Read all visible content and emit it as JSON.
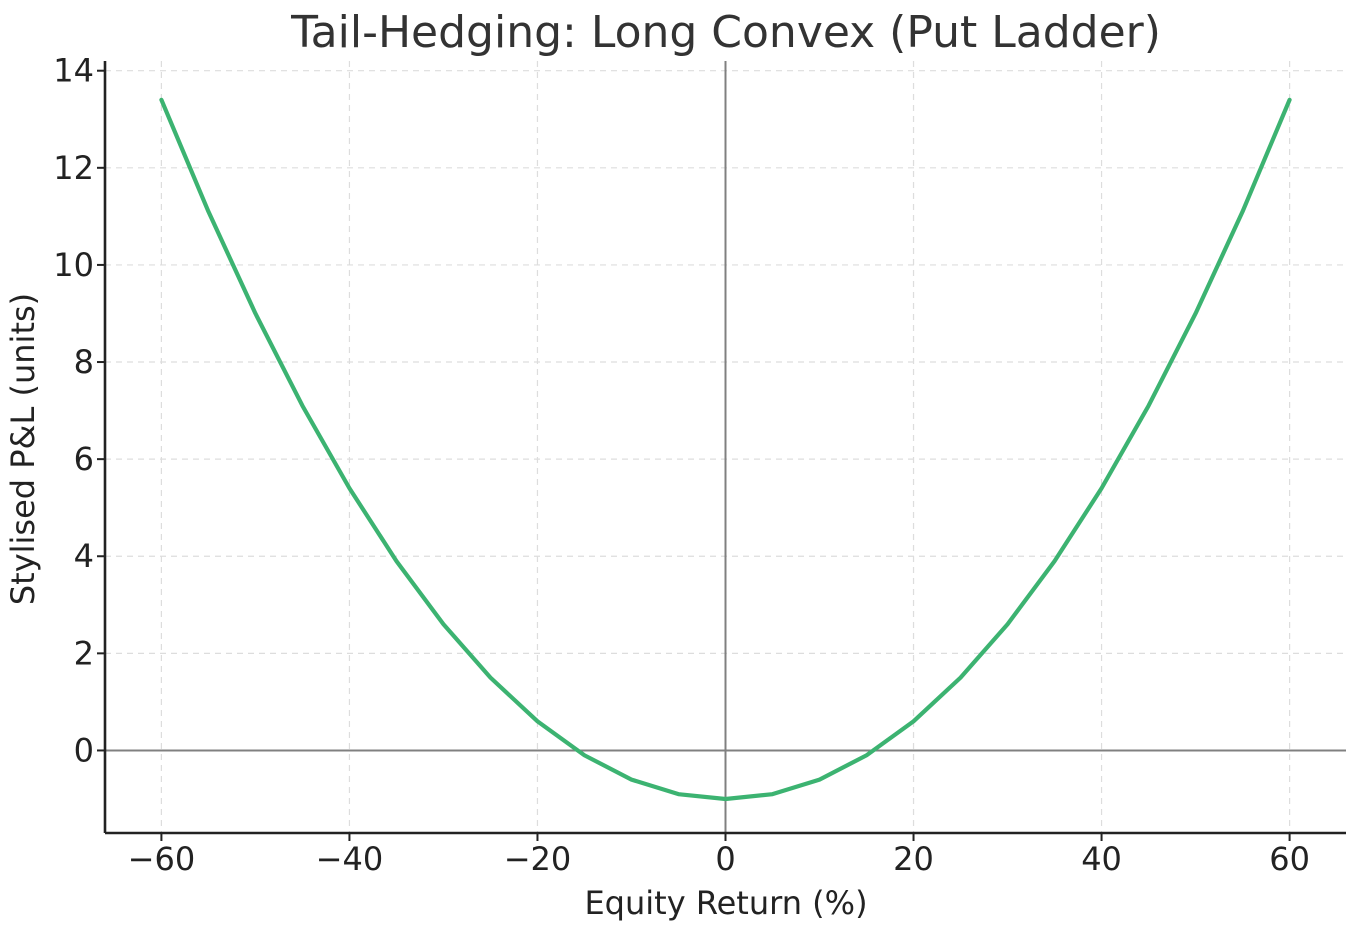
{
  "chart_data": {
    "type": "line",
    "title": "Tail-Hedging: Long Convex (Put Ladder)",
    "xlabel": "Equity Return (%)",
    "ylabel": "Stylised P&L (units)",
    "xlim": [
      -66,
      66
    ],
    "ylim": [
      -1.7,
      14.2
    ],
    "x_ticks": [
      -60,
      -40,
      -20,
      0,
      20,
      40,
      60
    ],
    "y_ticks": [
      0,
      2,
      4,
      6,
      8,
      10,
      12,
      14
    ],
    "x_tick_labels": [
      "−60",
      "−40",
      "−20",
      "0",
      "20",
      "40",
      "60"
    ],
    "y_tick_labels": [
      "0",
      "2",
      "4",
      "6",
      "8",
      "10",
      "12",
      "14"
    ],
    "grid": true,
    "reference_lines": {
      "x": 0,
      "y": 0
    },
    "series": [
      {
        "color": "#3cb371",
        "x": [
          -60,
          -55,
          -50,
          -45,
          -40,
          -35,
          -30,
          -25,
          -20,
          -15,
          -10,
          -5,
          0,
          5,
          10,
          15,
          20,
          25,
          30,
          35,
          40,
          45,
          50,
          55,
          60
        ],
        "y": [
          13.4,
          11.1,
          9.0,
          7.1,
          5.4,
          3.9,
          2.6,
          1.5,
          0.6,
          -0.1,
          -0.6,
          -0.9,
          -1.0,
          -0.9,
          -0.6,
          -0.1,
          0.6,
          1.5,
          2.6,
          3.9,
          5.4,
          7.1,
          9.0,
          11.1,
          13.4
        ]
      }
    ],
    "colors": {
      "line": "#3cb371",
      "grid": "#dddddd",
      "reference": "#808080",
      "axis": "#222222",
      "title": "#333333"
    }
  }
}
